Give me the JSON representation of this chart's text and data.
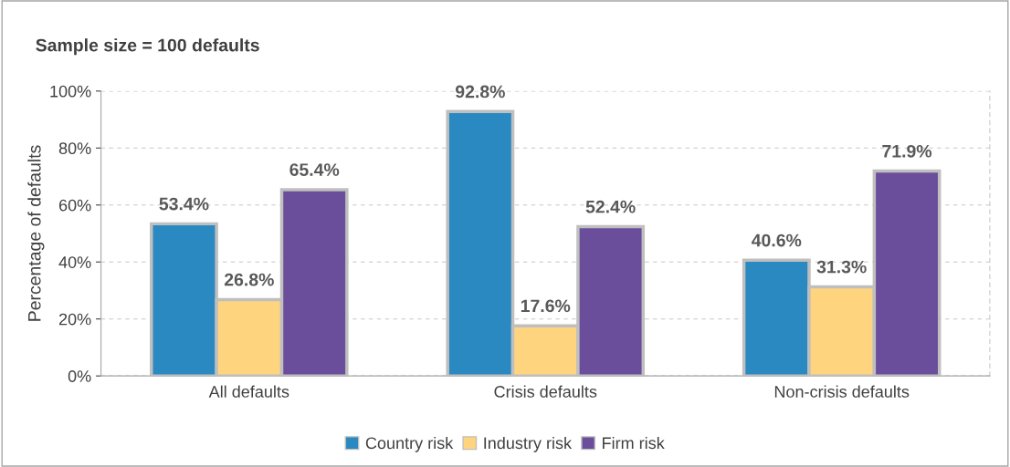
{
  "chart_data": {
    "type": "bar",
    "title": "Sample size = 100 defaults",
    "ylabel": "Percentage of defaults",
    "categories": [
      "All defaults",
      "Crisis defaults",
      "Non-crisis defaults"
    ],
    "series": [
      {
        "name": "Country risk",
        "color": "#2b89c1",
        "values": [
          53.4,
          92.8,
          40.6
        ],
        "value_labels": [
          "53.4%",
          "92.8%",
          "40.6%"
        ]
      },
      {
        "name": "Industry risk",
        "color": "#ffd47f",
        "values": [
          26.8,
          17.6,
          31.3
        ],
        "value_labels": [
          "26.8%",
          "17.6%",
          "31.3%"
        ]
      },
      {
        "name": "Firm risk",
        "color": "#6b4e9b",
        "values": [
          65.4,
          52.4,
          71.9
        ],
        "value_labels": [
          "65.4%",
          "52.4%",
          "71.9%"
        ]
      }
    ],
    "ylim": [
      0,
      100
    ],
    "yticks": [
      {
        "value": 0,
        "label": "0%"
      },
      {
        "value": 20,
        "label": "20%"
      },
      {
        "value": 40,
        "label": "40%"
      },
      {
        "value": 60,
        "label": "60%"
      },
      {
        "value": 80,
        "label": "80%"
      },
      {
        "value": 100,
        "label": "100%"
      }
    ],
    "grid": "y",
    "legend": "bottom"
  }
}
